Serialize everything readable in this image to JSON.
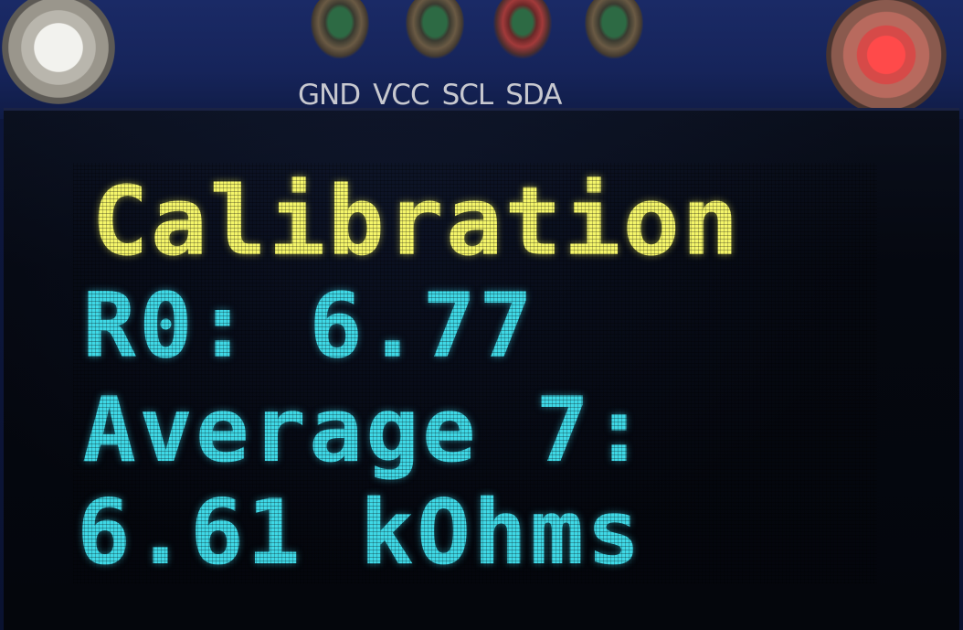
{
  "pcb": {
    "pin_labels": [
      "GND",
      "VCC",
      "SCL",
      "SDA"
    ]
  },
  "display": {
    "title": "Calibration",
    "r0_line": "R0: 6.77",
    "average_line": "Average 7:",
    "value_line": "6.61 kOhms"
  },
  "colors": {
    "title": "#f4f56a",
    "text": "#3fd8e6",
    "pcb": "#16245a"
  }
}
